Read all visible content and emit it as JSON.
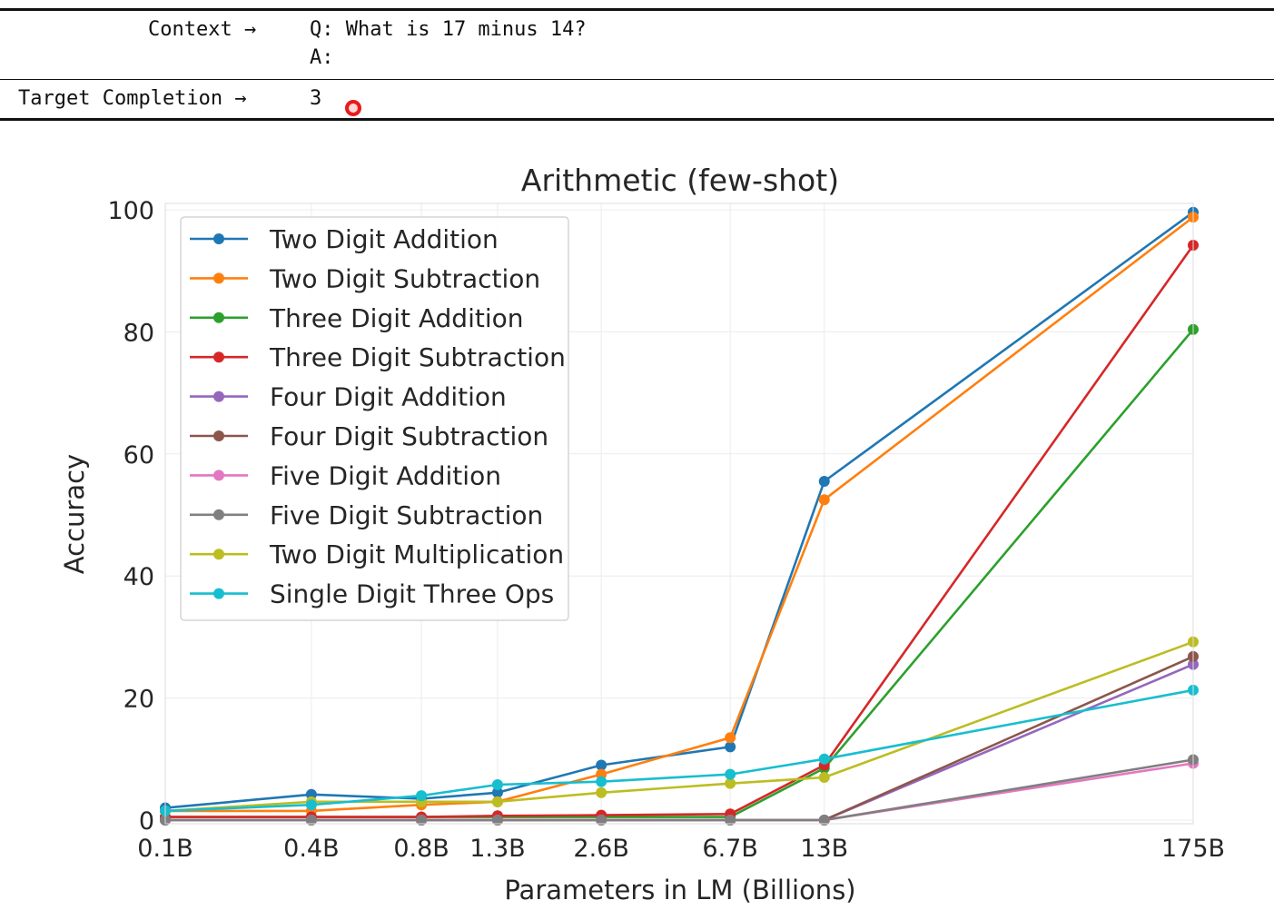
{
  "example": {
    "context_label": "Context →",
    "question": "Q: What is 17 minus 14?",
    "answer_prompt": "A:",
    "target_label": "Target Completion →",
    "target_value": "3"
  },
  "chart_data": {
    "type": "line",
    "title": "Arithmetic (few-shot)",
    "xlabel": "Parameters in LM (Billions)",
    "ylabel": "Accuracy",
    "categories": [
      "0.1B",
      "0.4B",
      "0.8B",
      "1.3B",
      "2.6B",
      "6.7B",
      "13B",
      "175B"
    ],
    "x": [
      0.125,
      0.35,
      0.76,
      1.3,
      2.7,
      6.7,
      13,
      175
    ],
    "xscale": "log",
    "ylim": [
      0,
      100
    ],
    "yticks": [
      0,
      20,
      40,
      60,
      80,
      100
    ],
    "grid": true,
    "legend_position": "upper-left",
    "series": [
      {
        "name": "Two Digit Addition",
        "color": "#1f77b4",
        "values": [
          2.0,
          4.2,
          3.5,
          4.5,
          9.0,
          12.0,
          55.5,
          99.6
        ]
      },
      {
        "name": "Two Digit Subtraction",
        "color": "#ff7f0e",
        "values": [
          1.5,
          1.5,
          2.5,
          3.0,
          7.5,
          13.5,
          52.5,
          98.8
        ]
      },
      {
        "name": "Three Digit Addition",
        "color": "#2ca02c",
        "values": [
          0.5,
          0.5,
          0.5,
          0.5,
          0.5,
          0.5,
          8.5,
          80.4
        ]
      },
      {
        "name": "Three Digit Subtraction",
        "color": "#d62728",
        "values": [
          0.5,
          0.5,
          0.5,
          0.7,
          0.8,
          1.0,
          9.0,
          94.2
        ]
      },
      {
        "name": "Four Digit Addition",
        "color": "#9467bd",
        "values": [
          0.0,
          0.0,
          0.0,
          0.0,
          0.0,
          0.0,
          0.0,
          25.5
        ]
      },
      {
        "name": "Four Digit Subtraction",
        "color": "#8c564b",
        "values": [
          0.0,
          0.0,
          0.0,
          0.0,
          0.0,
          0.0,
          0.0,
          26.8
        ]
      },
      {
        "name": "Five Digit Addition",
        "color": "#e377c2",
        "values": [
          0.0,
          0.0,
          0.0,
          0.0,
          0.0,
          0.0,
          0.0,
          9.3
        ]
      },
      {
        "name": "Five Digit Subtraction",
        "color": "#7f7f7f",
        "values": [
          0.0,
          0.0,
          0.0,
          0.0,
          0.0,
          0.0,
          0.0,
          9.9
        ]
      },
      {
        "name": "Two Digit Multiplication",
        "color": "#bcbd22",
        "values": [
          1.5,
          3.0,
          3.0,
          3.0,
          4.5,
          6.0,
          7.0,
          29.2
        ]
      },
      {
        "name": "Single Digit Three Ops",
        "color": "#17becf",
        "values": [
          1.5,
          2.5,
          4.0,
          5.8,
          6.3,
          7.5,
          10.0,
          21.3
        ]
      }
    ]
  }
}
